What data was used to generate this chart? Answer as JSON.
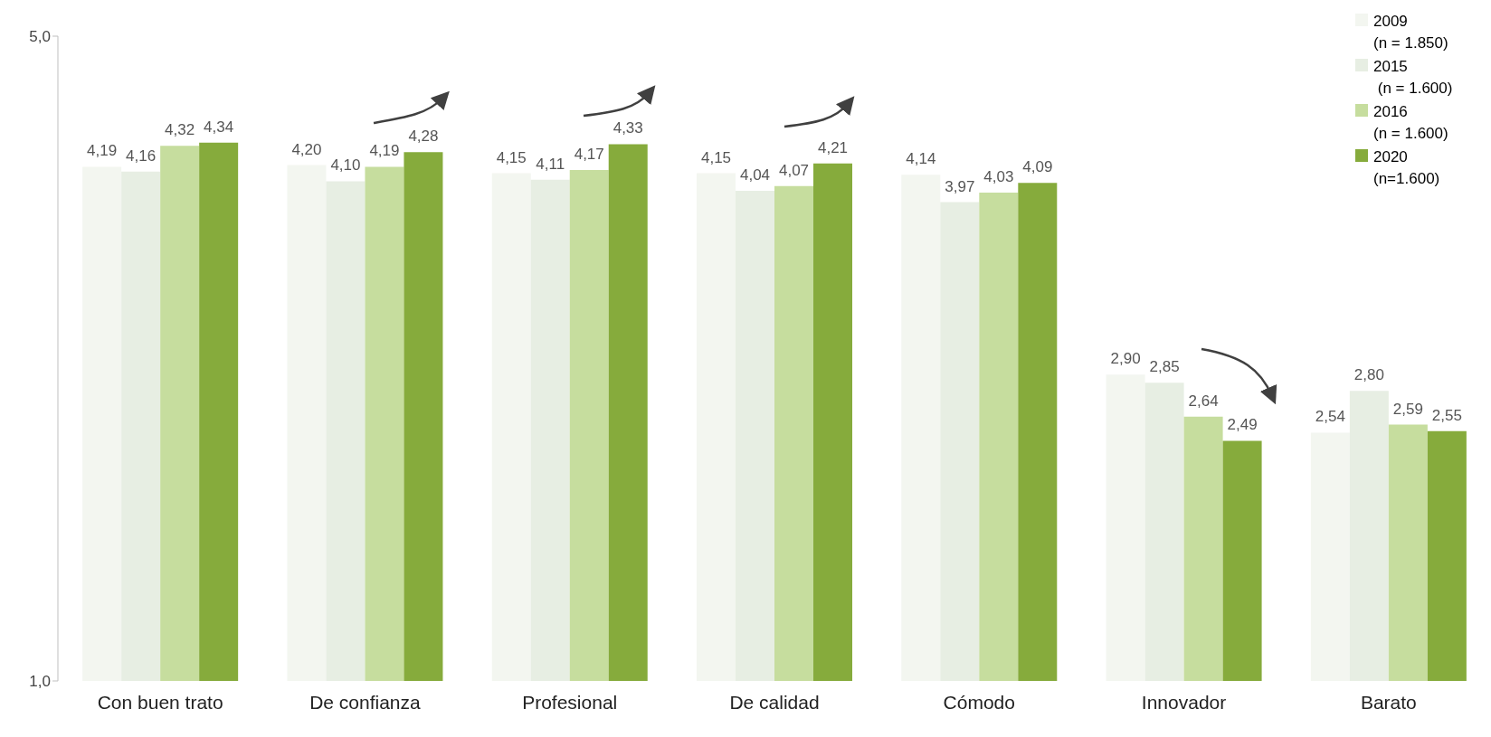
{
  "chart_data": {
    "type": "bar",
    "categories": [
      "Con buen trato",
      "De confianza",
      "Profesional",
      "De calidad",
      "Cómodo",
      "Innovador",
      "Barato"
    ],
    "series": [
      {
        "name": "2009\n(n = 1.850)",
        "color": "#f3f6f0",
        "values": [
          4.19,
          4.2,
          4.15,
          4.15,
          4.14,
          2.9,
          2.54
        ],
        "value_labels": [
          "4,19",
          "4,20",
          "4,15",
          "4,15",
          "4,14",
          "2,90",
          "2,54"
        ]
      },
      {
        "name": "2015\n (n = 1.600)",
        "color": "#e7eee3",
        "values": [
          4.16,
          4.1,
          4.11,
          4.04,
          3.97,
          2.85,
          2.8
        ],
        "value_labels": [
          "4,16",
          "4,10",
          "4,11",
          "4,04",
          "3,97",
          "2,85",
          "2,80"
        ]
      },
      {
        "name": "2016\n(n = 1.600)",
        "color": "#c6dd9e",
        "values": [
          4.32,
          4.19,
          4.17,
          4.07,
          4.03,
          2.64,
          2.59
        ],
        "value_labels": [
          "4,32",
          "4,19",
          "4,17",
          "4,07",
          "4,03",
          "2,64",
          "2,59"
        ]
      },
      {
        "name": "2020\n(n=1.600)",
        "color": "#86ab3c",
        "values": [
          4.34,
          4.28,
          4.33,
          4.21,
          4.09,
          2.49,
          2.55
        ],
        "value_labels": [
          "4,34",
          "4,28",
          "4,33",
          "4,21",
          "4,09",
          "2,49",
          "2,55"
        ]
      }
    ],
    "ylim": [
      1,
      5
    ],
    "yticks": [
      {
        "value": 1,
        "label": "1,0"
      },
      {
        "value": 5,
        "label": "5,0"
      }
    ],
    "grid": false,
    "legend": "top right"
  }
}
